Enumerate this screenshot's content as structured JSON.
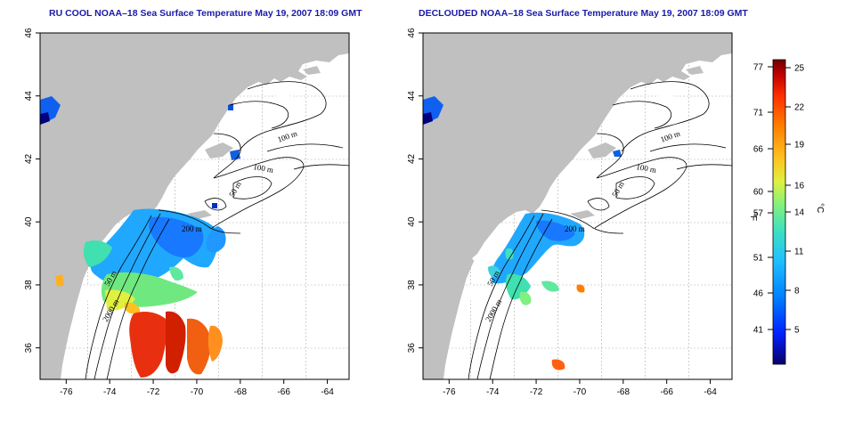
{
  "maps": [
    {
      "title": "RU COOL NOAA–18 Sea Surface Temperature May 19, 2007 18:09 GMT",
      "contour_labels": [
        "100 m",
        "100 m",
        "50 m",
        "200 m",
        "50 m",
        "2000 m"
      ]
    },
    {
      "title": "DECLOUDED NOAA–18 Sea Surface Temperature May 19, 2007 18:09 GMT",
      "contour_labels": [
        "100 m",
        "100 m",
        "50 m",
        "200 m",
        "50 m",
        "2000 m"
      ]
    }
  ],
  "axes": {
    "lon_ticks": [
      "-76",
      "-74",
      "-72",
      "-70",
      "-68",
      "-66",
      "-64"
    ],
    "lat_ticks": [
      "36",
      "38",
      "40",
      "42",
      "44",
      "46"
    ],
    "lon_range": [
      -77.2,
      -63.0
    ],
    "lat_range": [
      35.0,
      46.0
    ]
  },
  "colorbar": {
    "unit_f": "°F",
    "unit_c": "°C",
    "f_ticks": [
      "77",
      "71",
      "66",
      "60",
      "57",
      "51",
      "46",
      "41"
    ],
    "c_ticks": [
      "25",
      "22",
      "19",
      "16",
      "14",
      "11",
      "8",
      "5"
    ],
    "colors": [
      "#08006a",
      "#0020ff",
      "#0080ff",
      "#20c0ff",
      "#40e0c0",
      "#80f080",
      "#e0f040",
      "#ffc020",
      "#ff8000",
      "#ff3000",
      "#c00000",
      "#700000"
    ]
  },
  "colors": {
    "land": "#c0c0c0",
    "title": "#1a1aa8"
  }
}
